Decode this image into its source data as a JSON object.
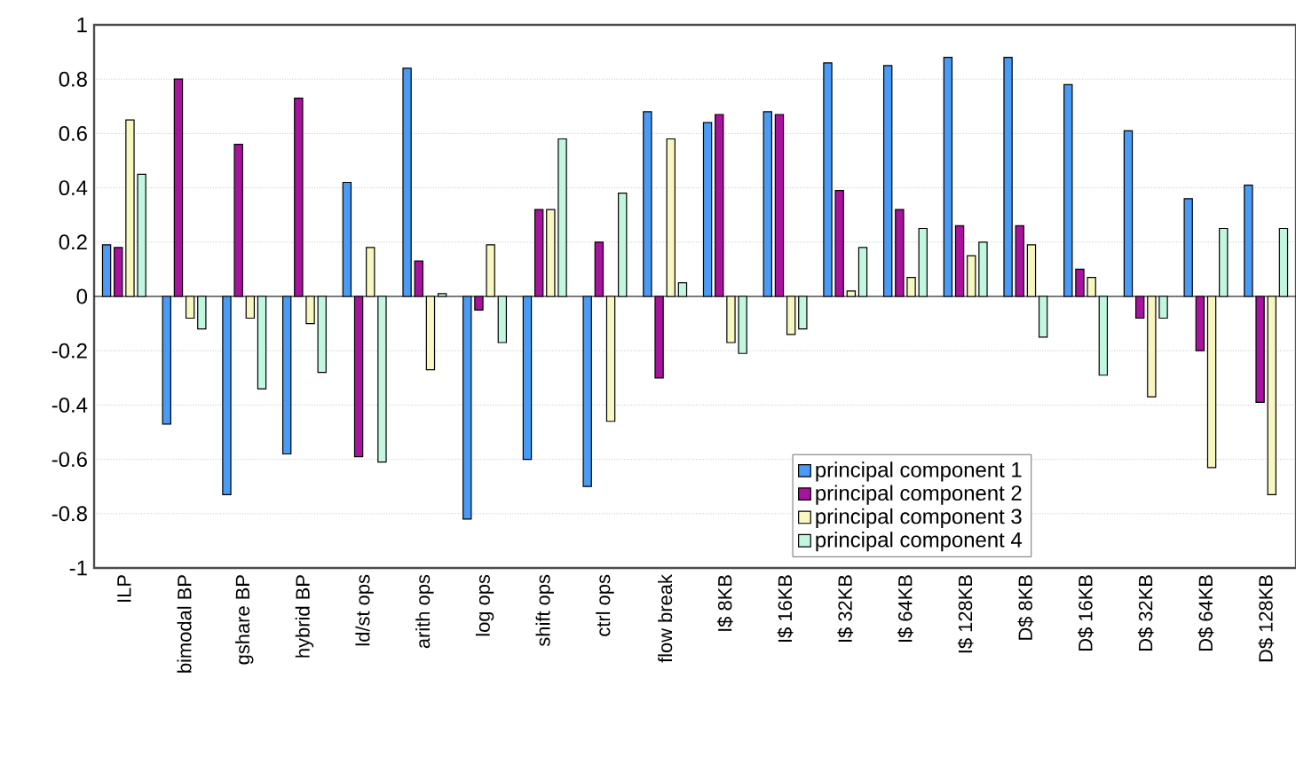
{
  "chart_data": {
    "type": "bar",
    "categories": [
      "ILP",
      "bimodal BP",
      "gshare BP",
      "hybrid BP",
      "ld/st ops",
      "arith ops",
      "log ops",
      "shift ops",
      "ctrl ops",
      "flow break",
      "I$ 8KB",
      "I$ 16KB",
      "I$ 32KB",
      "I$ 64KB",
      "I$ 128KB",
      "D$ 8KB",
      "D$ 16KB",
      "D$ 32KB",
      "D$ 64KB",
      "D$ 128KB"
    ],
    "series": [
      {
        "name": "principal component 1",
        "color": "#4a9bf5",
        "values": [
          0.19,
          -0.47,
          -0.73,
          -0.58,
          0.42,
          0.84,
          -0.82,
          -0.6,
          -0.7,
          0.68,
          0.64,
          0.68,
          0.86,
          0.85,
          0.88,
          0.88,
          0.78,
          0.61,
          0.36,
          0.41
        ]
      },
      {
        "name": "principal component 2",
        "color": "#a8139e",
        "values": [
          0.18,
          0.8,
          0.56,
          0.73,
          -0.59,
          0.13,
          -0.05,
          0.32,
          0.2,
          -0.3,
          0.67,
          0.67,
          0.39,
          0.32,
          0.26,
          0.26,
          0.1,
          -0.08,
          -0.2,
          -0.39
        ]
      },
      {
        "name": "principal component 3",
        "color": "#f8f7c0",
        "values": [
          0.65,
          -0.08,
          -0.08,
          -0.1,
          0.18,
          -0.27,
          0.19,
          0.32,
          -0.46,
          0.58,
          -0.17,
          -0.14,
          0.02,
          0.07,
          0.15,
          0.19,
          0.07,
          -0.37,
          -0.63,
          -0.73
        ]
      },
      {
        "name": "principal component 4",
        "color": "#c2f7df",
        "values": [
          0.45,
          -0.12,
          -0.34,
          -0.28,
          -0.61,
          0.01,
          -0.17,
          0.58,
          0.38,
          0.05,
          -0.21,
          -0.12,
          0.18,
          0.25,
          0.2,
          -0.15,
          -0.29,
          -0.08,
          0.25,
          0.25
        ]
      }
    ],
    "ylim": [
      -1,
      1
    ],
    "yticks": [
      -1,
      -0.8,
      -0.6,
      -0.4,
      -0.2,
      0,
      0.2,
      0.4,
      0.6,
      0.8,
      1
    ],
    "grid": "y",
    "legend": "bottom right"
  }
}
